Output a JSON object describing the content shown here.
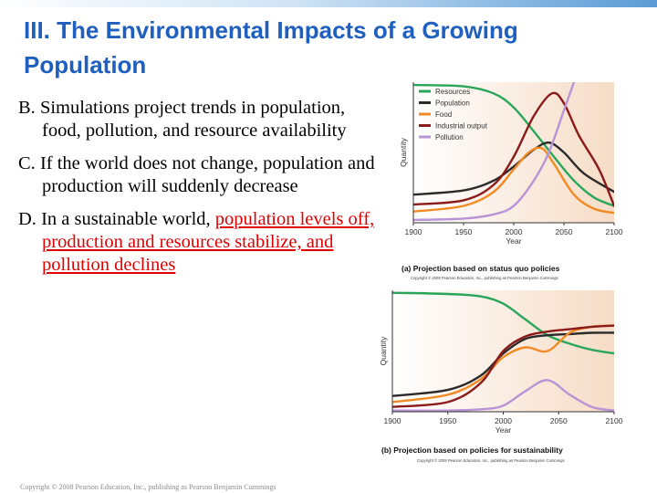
{
  "slide": {
    "title": "III. The Environmental Impacts of a Growing Population",
    "bullets": [
      {
        "prefix": "B. ",
        "text": "Simulations project trends in population, food, pollution, and resource availability",
        "highlight": ""
      },
      {
        "prefix": "C. ",
        "text": "If the world does not change, population and production will suddenly decrease",
        "highlight": ""
      },
      {
        "prefix": "D. ",
        "text": "In a sustainable world, ",
        "highlight": "population levels off, production and resources stabilize, and pollution declines"
      }
    ],
    "footer": "Copyright © 2008 Pearson Education, Inc., publishing as Pearson Benjamin Cummings",
    "colors": {
      "title": "#1f5fbf",
      "highlight": "#e00000"
    }
  },
  "chart_data": [
    {
      "type": "line",
      "caption": "(a) Projection based on status quo policies",
      "copyright": "Copyright © 2008 Pearson Education, Inc., publishing as Pearson Benjamin Cummings",
      "xlabel": "Year",
      "ylabel": "Quantity",
      "xticks": [
        "1900",
        "1950",
        "2000",
        "2050",
        "2100"
      ],
      "xlim": [
        1900,
        2100
      ],
      "ylim": [
        0,
        100
      ],
      "legend": "top-left",
      "series": [
        {
          "name": "Resources",
          "color": "#2aa65a",
          "points": [
            [
              1900,
              98
            ],
            [
              1950,
              97
            ],
            [
              1980,
              92
            ],
            [
              2000,
              82
            ],
            [
              2020,
              65
            ],
            [
              2040,
              47
            ],
            [
              2060,
              30
            ],
            [
              2080,
              18
            ],
            [
              2100,
              12
            ]
          ]
        },
        {
          "name": "Population",
          "color": "#2a2a2a",
          "points": [
            [
              1900,
              20
            ],
            [
              1950,
              23
            ],
            [
              1980,
              30
            ],
            [
              2000,
              40
            ],
            [
              2020,
              52
            ],
            [
              2035,
              57
            ],
            [
              2050,
              50
            ],
            [
              2070,
              35
            ],
            [
              2100,
              22
            ]
          ]
        },
        {
          "name": "Food",
          "color": "#f28a24",
          "points": [
            [
              1900,
              8
            ],
            [
              1950,
              12
            ],
            [
              1980,
              22
            ],
            [
              2000,
              38
            ],
            [
              2015,
              50
            ],
            [
              2028,
              53
            ],
            [
              2040,
              42
            ],
            [
              2060,
              20
            ],
            [
              2080,
              10
            ],
            [
              2100,
              7
            ]
          ]
        },
        {
          "name": "Industrial output",
          "color": "#8b1a1a",
          "points": [
            [
              1900,
              13
            ],
            [
              1950,
              16
            ],
            [
              1980,
              27
            ],
            [
              2000,
              47
            ],
            [
              2020,
              76
            ],
            [
              2038,
              92
            ],
            [
              2050,
              85
            ],
            [
              2065,
              62
            ],
            [
              2085,
              38
            ],
            [
              2100,
              12
            ]
          ]
        },
        {
          "name": "Pollution",
          "color": "#b893d6",
          "points": [
            [
              1900,
              2
            ],
            [
              1950,
              3
            ],
            [
              1980,
              6
            ],
            [
              2000,
              12
            ],
            [
              2020,
              30
            ],
            [
              2035,
              50
            ],
            [
              2050,
              80
            ],
            [
              2060,
              100
            ]
          ]
        }
      ]
    },
    {
      "type": "line",
      "caption": "(b) Projection based on policies for sustainability",
      "copyright": "Copyright © 2008 Pearson Education, Inc., publishing as Pearson Benjamin Cummings",
      "xlabel": "Year",
      "ylabel": "Quantity",
      "xticks": [
        "1900",
        "1950",
        "2000",
        "2050",
        "2100"
      ],
      "xlim": [
        1900,
        2100
      ],
      "ylim": [
        0,
        100
      ],
      "series": [
        {
          "name": "Resources",
          "color": "#2aa65a",
          "points": [
            [
              1900,
              98
            ],
            [
              1950,
              97
            ],
            [
              1980,
              95
            ],
            [
              2000,
              89
            ],
            [
              2020,
              76
            ],
            [
              2040,
              63
            ],
            [
              2060,
              56
            ],
            [
              2080,
              51
            ],
            [
              2100,
              48
            ]
          ]
        },
        {
          "name": "Population",
          "color": "#2a2a2a",
          "points": [
            [
              1900,
              13
            ],
            [
              1950,
              18
            ],
            [
              1980,
              30
            ],
            [
              2000,
              48
            ],
            [
              2020,
              60
            ],
            [
              2040,
              63
            ],
            [
              2060,
              64
            ],
            [
              2080,
              65
            ],
            [
              2100,
              65
            ]
          ]
        },
        {
          "name": "Food",
          "color": "#f28a24",
          "points": [
            [
              1900,
              8
            ],
            [
              1950,
              14
            ],
            [
              1980,
              27
            ],
            [
              2000,
              45
            ],
            [
              2020,
              53
            ],
            [
              2040,
              50
            ],
            [
              2060,
              65
            ],
            [
              2080,
              70
            ],
            [
              2100,
              71
            ]
          ]
        },
        {
          "name": "Industrial output",
          "color": "#8b1a1a",
          "points": [
            [
              1900,
              4
            ],
            [
              1950,
              8
            ],
            [
              1980,
              24
            ],
            [
              2000,
              50
            ],
            [
              2020,
              62
            ],
            [
              2040,
              66
            ],
            [
              2060,
              68
            ],
            [
              2080,
              70
            ],
            [
              2100,
              71
            ]
          ]
        },
        {
          "name": "Pollution",
          "color": "#b893d6",
          "points": [
            [
              1900,
              1
            ],
            [
              1950,
              1
            ],
            [
              1980,
              2
            ],
            [
              2000,
              5
            ],
            [
              2020,
              17
            ],
            [
              2040,
              26
            ],
            [
              2060,
              14
            ],
            [
              2080,
              4
            ],
            [
              2100,
              1
            ]
          ]
        }
      ]
    }
  ]
}
